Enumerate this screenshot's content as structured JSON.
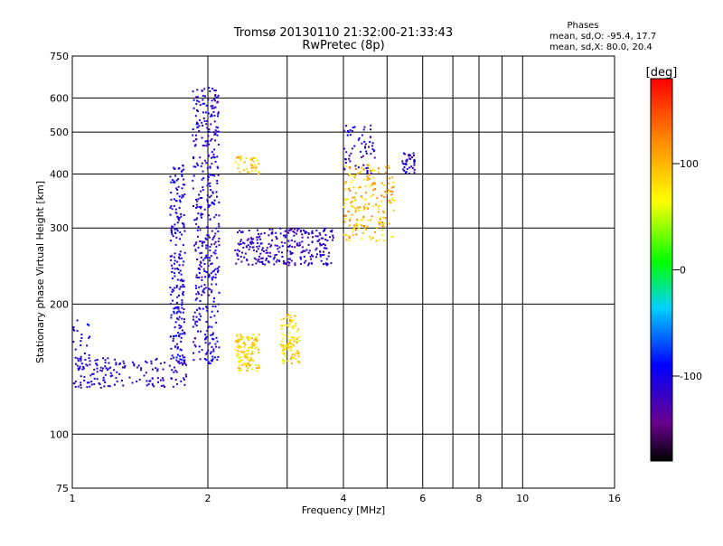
{
  "chart_data": {
    "type": "scatter",
    "title": "Tromsø 20130110 21:32:00-21:33:43",
    "subtitle": "RwPretec (8p)",
    "xlabel": "Frequency [MHz]",
    "ylabel": "Stationary phase Virtual Height [km]",
    "x_scale": "log",
    "y_scale": "log",
    "xlim": [
      1,
      16
    ],
    "ylim": [
      75,
      750
    ],
    "x_ticks": [
      "1",
      "2",
      "4",
      "6",
      "8",
      "10",
      "16"
    ],
    "x_tick_values": [
      1,
      2,
      4,
      6,
      8,
      10,
      16
    ],
    "x_grid_values": [
      1,
      2,
      3,
      4,
      5,
      6,
      7,
      8,
      9,
      10,
      16
    ],
    "y_ticks": [
      "75",
      "100",
      "200",
      "300",
      "400",
      "500",
      "600",
      "750"
    ],
    "y_tick_values": [
      75,
      100,
      200,
      300,
      400,
      500,
      600,
      750
    ],
    "y_grid_values": [
      100,
      200,
      300,
      400,
      500,
      600
    ],
    "grid": true,
    "stats": {
      "heading": "Phases",
      "line_o": "mean, sd,O: -95.4, 17.7",
      "line_x": "mean, sd,X:  80.0, 20.4"
    },
    "colorbar": {
      "label": "[deg]",
      "range": [
        -180,
        180
      ],
      "ticks": [
        "100",
        "0",
        "-100"
      ],
      "tick_values": [
        100,
        0,
        -100
      ]
    },
    "clusters": [
      {
        "region": "low-frequency floor echoes",
        "f_range": [
          1.0,
          1.8
        ],
        "h_range": [
          128,
          150
        ],
        "phase_range": [
          -125,
          -95
        ],
        "points": 160
      },
      {
        "region": "near 1 MHz",
        "f_range": [
          1.0,
          1.1
        ],
        "h_range": [
          140,
          185
        ],
        "phase_range": [
          -110,
          -90
        ],
        "points": 30
      },
      {
        "region": "vertical band near 1.7 MHz",
        "f_range": [
          1.65,
          1.78
        ],
        "h_range": [
          145,
          420
        ],
        "phase_range": [
          -120,
          -85
        ],
        "points": 220
      },
      {
        "region": "vertical band near 2 MHz",
        "f_range": [
          1.85,
          2.12
        ],
        "h_range": [
          145,
          640
        ],
        "phase_range": [
          -130,
          -85
        ],
        "points": 420
      },
      {
        "region": "F-layer trace",
        "f_range": [
          2.3,
          3.8
        ],
        "h_range": [
          245,
          300
        ],
        "phase_range": [
          -135,
          -95
        ],
        "points": 280
      },
      {
        "region": "X-mode echoes near 2.5 MHz",
        "f_range": [
          2.3,
          2.6
        ],
        "h_range": [
          140,
          170
        ],
        "phase_range": [
          50,
          110
        ],
        "points": 120
      },
      {
        "region": "X-mode echoes near 3.1 MHz",
        "f_range": [
          2.9,
          3.2
        ],
        "h_range": [
          145,
          190
        ],
        "phase_range": [
          50,
          110
        ],
        "points": 100
      },
      {
        "region": "X-mode upper band near 2.5 MHz",
        "f_range": [
          2.3,
          2.6
        ],
        "h_range": [
          400,
          440
        ],
        "phase_range": [
          70,
          110
        ],
        "points": 40
      },
      {
        "region": "F-layer cusp",
        "f_range": [
          4.0,
          5.2
        ],
        "h_range": [
          280,
          420
        ],
        "phase_range": [
          60,
          140
        ],
        "points": 200
      },
      {
        "region": "high echoes near 4.3 MHz",
        "f_range": [
          4.0,
          4.7
        ],
        "h_range": [
          400,
          520
        ],
        "phase_range": [
          -130,
          -90
        ],
        "points": 60
      },
      {
        "region": "spread near 5.6 MHz",
        "f_range": [
          5.4,
          5.8
        ],
        "h_range": [
          400,
          450
        ],
        "phase_range": [
          -120,
          -90
        ],
        "points": 40
      }
    ]
  }
}
